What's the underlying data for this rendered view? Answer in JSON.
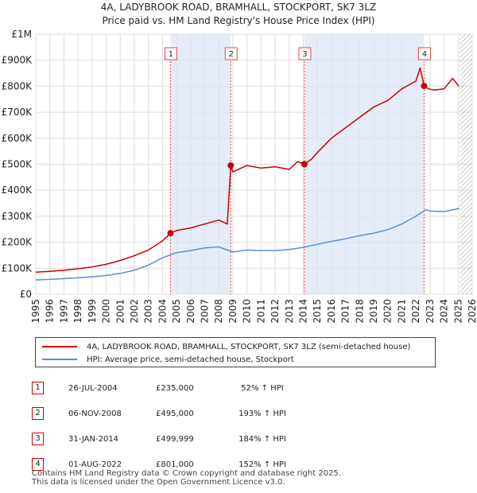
{
  "title_line1": "4A, LADYBROOK ROAD, BRAMHALL, STOCKPORT, SK7 3LZ",
  "title_line2": "Price paid vs. HM Land Registry's House Price Index (HPI)",
  "colors": {
    "property": "#cc0000",
    "hpi": "#5b8fd4",
    "band": "#dce6f5",
    "grid": "#dddddd",
    "marker": "#ee4444"
  },
  "chart_data": {
    "type": "line",
    "xlim": [
      1995,
      2026
    ],
    "ylim": [
      0,
      1000000
    ],
    "y_ticks": [
      {
        "v": 0,
        "label": "£0"
      },
      {
        "v": 100000,
        "label": "£100K"
      },
      {
        "v": 200000,
        "label": "£200K"
      },
      {
        "v": 300000,
        "label": "£300K"
      },
      {
        "v": 400000,
        "label": "£400K"
      },
      {
        "v": 500000,
        "label": "£500K"
      },
      {
        "v": 600000,
        "label": "£600K"
      },
      {
        "v": 700000,
        "label": "£700K"
      },
      {
        "v": 800000,
        "label": "£800K"
      },
      {
        "v": 900000,
        "label": "£900K"
      },
      {
        "v": 1000000,
        "label": "£1M"
      }
    ],
    "x_ticks": [
      "1995",
      "1996",
      "1997",
      "1998",
      "1999",
      "2000",
      "2001",
      "2002",
      "2003",
      "2004",
      "2005",
      "2006",
      "2007",
      "2008",
      "2009",
      "2010",
      "2011",
      "2012",
      "2013",
      "2014",
      "2015",
      "2016",
      "2017",
      "2018",
      "2019",
      "2020",
      "2021",
      "2022",
      "2023",
      "2024",
      "2025",
      "2026"
    ],
    "future_hatch_from": 2025.1,
    "series": [
      {
        "name": "4A, LADYBROOK ROAD, BRAMHALL, STOCKPORT, SK7 3LZ (semi-detached house)",
        "x": [
          1995,
          1996,
          1997,
          1998,
          1999,
          2000,
          2001,
          2002,
          2003,
          2004,
          2004.57,
          2005,
          2006,
          2007,
          2008,
          2008.6,
          2008.85,
          2009,
          2010,
          2011,
          2012,
          2013,
          2013.6,
          2014.08,
          2014.6,
          2015,
          2016,
          2017,
          2018,
          2019,
          2020,
          2021,
          2022,
          2022.3,
          2022.58,
          2022.9,
          2023.3,
          2024,
          2024.6,
          2025.05
        ],
        "values": [
          85000,
          88000,
          92000,
          98000,
          105000,
          115000,
          130000,
          148000,
          170000,
          205000,
          235000,
          245000,
          255000,
          270000,
          285000,
          270000,
          495000,
          470000,
          495000,
          485000,
          490000,
          480000,
          510000,
          499999,
          520000,
          545000,
          600000,
          640000,
          680000,
          720000,
          745000,
          790000,
          820000,
          870000,
          801000,
          790000,
          785000,
          790000,
          830000,
          800000
        ]
      },
      {
        "name": "HPI: Average price, semi-detached house, Stockport",
        "x": [
          1995,
          1996,
          1997,
          1998,
          1999,
          2000,
          2001,
          2002,
          2003,
          2004,
          2005,
          2006,
          2007,
          2008,
          2009,
          2010,
          2011,
          2012,
          2013,
          2014,
          2015,
          2016,
          2017,
          2018,
          2019,
          2020,
          2021,
          2022,
          2022.7,
          2023,
          2024,
          2025.1
        ],
        "values": [
          55000,
          57000,
          60000,
          63000,
          67000,
          72000,
          80000,
          92000,
          112000,
          140000,
          160000,
          168000,
          178000,
          182000,
          162000,
          170000,
          168000,
          168000,
          172000,
          180000,
          192000,
          203000,
          213000,
          225000,
          235000,
          248000,
          270000,
          300000,
          325000,
          320000,
          318000,
          330000
        ]
      }
    ],
    "sales": [
      {
        "n": "1",
        "x": 2004.57,
        "price": 235000
      },
      {
        "n": "2",
        "x": 2008.85,
        "price": 495000
      },
      {
        "n": "3",
        "x": 2014.08,
        "price": 499999
      },
      {
        "n": "4",
        "x": 2022.58,
        "price": 801000
      }
    ]
  },
  "legend": {
    "property": "4A, LADYBROOK ROAD, BRAMHALL, STOCKPORT, SK7 3LZ (semi-detached house)",
    "hpi": "HPI: Average price, semi-detached house, Stockport"
  },
  "transactions": [
    {
      "n": "1",
      "date": "26-JUL-2004",
      "price": "£235,000",
      "hpi": "52% ↑ HPI"
    },
    {
      "n": "2",
      "date": "06-NOV-2008",
      "price": "£495,000",
      "hpi": "193% ↑ HPI"
    },
    {
      "n": "3",
      "date": "31-JAN-2014",
      "price": "£499,999",
      "hpi": "184% ↑ HPI"
    },
    {
      "n": "4",
      "date": "01-AUG-2022",
      "price": "£801,000",
      "hpi": "152% ↑ HPI"
    }
  ],
  "footer_line1": "Contains HM Land Registry data © Crown copyright and database right 2025.",
  "footer_line2": "This data is licensed under the Open Government Licence v3.0."
}
